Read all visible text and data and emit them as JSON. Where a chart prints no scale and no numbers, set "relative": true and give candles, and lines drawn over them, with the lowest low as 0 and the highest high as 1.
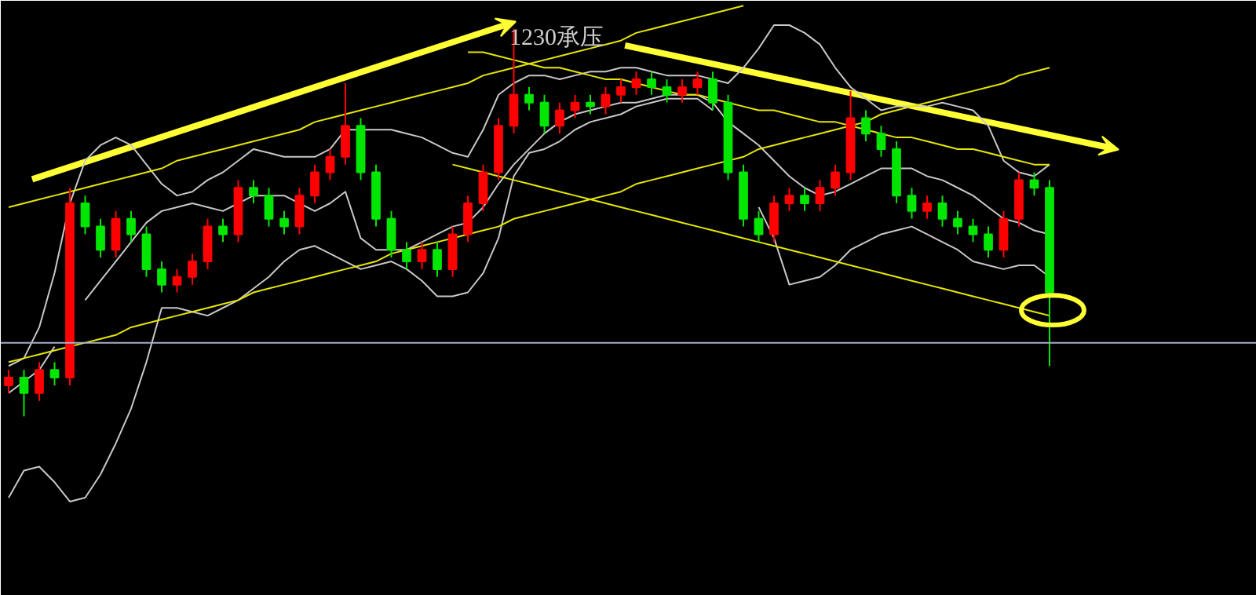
{
  "chart_data": {
    "type": "candlestick",
    "relative": true,
    "tick_labels": false,
    "grid": false,
    "categories": [
      null,
      null,
      null,
      null,
      null,
      null,
      null,
      null,
      null,
      null,
      null,
      null,
      null,
      null,
      null,
      null,
      null,
      null,
      null,
      null,
      null,
      null,
      null,
      null,
      null,
      null,
      null,
      null,
      null,
      null,
      null,
      null,
      null,
      null,
      null,
      null,
      null,
      null,
      null,
      null,
      null,
      null,
      null,
      null,
      null,
      null,
      null,
      null,
      null,
      null,
      null,
      null,
      null,
      null,
      null,
      null,
      null,
      null,
      null,
      null,
      null,
      null,
      null,
      null,
      null,
      null,
      null,
      null,
      null
    ],
    "ohlc": [
      [
        0.08,
        0.12,
        0.06,
        0.1
      ],
      [
        0.1,
        0.12,
        0.0,
        0.06
      ],
      [
        0.06,
        0.14,
        0.04,
        0.12
      ],
      [
        0.12,
        0.14,
        0.08,
        0.1
      ],
      [
        0.1,
        0.59,
        0.08,
        0.55
      ],
      [
        0.55,
        0.57,
        0.47,
        0.49
      ],
      [
        0.49,
        0.51,
        0.41,
        0.43
      ],
      [
        0.43,
        0.53,
        0.41,
        0.51
      ],
      [
        0.51,
        0.53,
        0.45,
        0.47
      ],
      [
        0.47,
        0.49,
        0.36,
        0.38
      ],
      [
        0.38,
        0.4,
        0.32,
        0.34
      ],
      [
        0.34,
        0.38,
        0.32,
        0.36
      ],
      [
        0.36,
        0.42,
        0.34,
        0.4
      ],
      [
        0.4,
        0.51,
        0.38,
        0.49
      ],
      [
        0.49,
        0.51,
        0.45,
        0.47
      ],
      [
        0.47,
        0.61,
        0.45,
        0.59
      ],
      [
        0.59,
        0.61,
        0.55,
        0.57
      ],
      [
        0.57,
        0.59,
        0.49,
        0.51
      ],
      [
        0.51,
        0.53,
        0.47,
        0.49
      ],
      [
        0.49,
        0.59,
        0.47,
        0.57
      ],
      [
        0.57,
        0.65,
        0.55,
        0.63
      ],
      [
        0.63,
        0.69,
        0.61,
        0.67
      ],
      [
        0.67,
        0.86,
        0.65,
        0.75
      ],
      [
        0.75,
        0.77,
        0.61,
        0.63
      ],
      [
        0.63,
        0.65,
        0.49,
        0.51
      ],
      [
        0.51,
        0.53,
        0.41,
        0.43
      ],
      [
        0.43,
        0.45,
        0.38,
        0.4
      ],
      [
        0.4,
        0.45,
        0.38,
        0.43
      ],
      [
        0.43,
        0.45,
        0.36,
        0.38
      ],
      [
        0.38,
        0.49,
        0.36,
        0.47
      ],
      [
        0.47,
        0.57,
        0.45,
        0.55
      ],
      [
        0.55,
        0.65,
        0.53,
        0.63
      ],
      [
        0.63,
        0.77,
        0.61,
        0.75
      ],
      [
        0.75,
        1.0,
        0.73,
        0.83
      ],
      [
        0.83,
        0.85,
        0.79,
        0.81
      ],
      [
        0.81,
        0.83,
        0.73,
        0.75
      ],
      [
        0.75,
        0.81,
        0.73,
        0.79
      ],
      [
        0.79,
        0.83,
        0.77,
        0.81
      ],
      [
        0.81,
        0.83,
        0.78,
        0.8
      ],
      [
        0.8,
        0.85,
        0.78,
        0.83
      ],
      [
        0.83,
        0.87,
        0.81,
        0.85
      ],
      [
        0.85,
        0.89,
        0.83,
        0.87
      ],
      [
        0.87,
        0.89,
        0.83,
        0.85
      ],
      [
        0.85,
        0.87,
        0.81,
        0.83
      ],
      [
        0.83,
        0.87,
        0.81,
        0.85
      ],
      [
        0.85,
        0.89,
        0.83,
        0.87
      ],
      [
        0.87,
        0.89,
        0.79,
        0.81
      ],
      [
        0.81,
        0.83,
        0.61,
        0.63
      ],
      [
        0.63,
        0.65,
        0.49,
        0.51
      ],
      [
        0.51,
        0.53,
        0.45,
        0.47
      ],
      [
        0.47,
        0.57,
        0.45,
        0.55
      ],
      [
        0.55,
        0.59,
        0.53,
        0.57
      ],
      [
        0.57,
        0.59,
        0.53,
        0.55
      ],
      [
        0.55,
        0.61,
        0.53,
        0.59
      ],
      [
        0.59,
        0.65,
        0.57,
        0.63
      ],
      [
        0.63,
        0.84,
        0.61,
        0.77
      ],
      [
        0.77,
        0.79,
        0.71,
        0.73
      ],
      [
        0.73,
        0.75,
        0.67,
        0.69
      ],
      [
        0.69,
        0.71,
        0.55,
        0.57
      ],
      [
        0.57,
        0.59,
        0.51,
        0.53
      ],
      [
        0.53,
        0.57,
        0.51,
        0.55
      ],
      [
        0.55,
        0.57,
        0.49,
        0.51
      ],
      [
        0.51,
        0.53,
        0.47,
        0.49
      ],
      [
        0.49,
        0.51,
        0.45,
        0.47
      ],
      [
        0.47,
        0.49,
        0.41,
        0.43
      ],
      [
        0.43,
        0.53,
        0.41,
        0.51
      ],
      [
        0.51,
        0.63,
        0.49,
        0.61
      ],
      [
        0.61,
        0.63,
        0.57,
        0.59
      ],
      [
        0.59,
        0.61,
        0.13,
        0.32
      ]
    ],
    "colors": [
      "#ff0000",
      "#00e600",
      "#ff0000",
      "#00e600",
      "#ff0000",
      "#00e600",
      "#00e600",
      "#ff0000",
      "#00e600",
      "#00e600",
      "#00e600",
      "#ff0000",
      "#ff0000",
      "#ff0000",
      "#00e600",
      "#ff0000",
      "#00e600",
      "#00e600",
      "#00e600",
      "#ff0000",
      "#ff0000",
      "#ff0000",
      "#ff0000",
      "#00e600",
      "#00e600",
      "#00e600",
      "#00e600",
      "#ff0000",
      "#00e600",
      "#ff0000",
      "#ff0000",
      "#ff0000",
      "#ff0000",
      "#ff0000",
      "#00e600",
      "#00e600",
      "#ff0000",
      "#ff0000",
      "#00e600",
      "#ff0000",
      "#ff0000",
      "#ff0000",
      "#00e600",
      "#00e600",
      "#ff0000",
      "#ff0000",
      "#00e600",
      "#00e600",
      "#00e600",
      "#00e600",
      "#ff0000",
      "#ff0000",
      "#00e600",
      "#ff0000",
      "#ff0000",
      "#ff0000",
      "#00e600",
      "#00e600",
      "#00e600",
      "#00e600",
      "#ff0000",
      "#00e600",
      "#00e600",
      "#00e600",
      "#00e600",
      "#ff0000",
      "#ff0000",
      "#00e600",
      "#00e600"
    ],
    "series": [
      {
        "type": "line",
        "color": "#c8c8c8",
        "values": [
          0.13,
          0.15,
          0.23,
          0.37,
          0.55,
          0.66,
          0.7,
          0.72,
          0.7,
          0.65,
          0.6,
          0.57,
          0.58,
          0.61,
          0.63,
          0.66,
          0.69,
          0.68,
          0.67,
          0.67,
          0.67,
          0.69,
          0.74,
          0.74,
          0.74,
          0.74,
          0.73,
          0.72,
          0.7,
          0.68,
          0.67,
          0.74,
          0.83,
          0.86,
          0.88,
          0.88,
          0.87,
          0.88,
          0.89,
          0.89,
          0.9,
          0.9,
          0.89,
          0.88,
          0.88,
          0.88,
          0.87,
          0.86,
          0.9,
          0.95,
          1.01,
          1.01,
          0.99,
          0.96,
          0.9,
          0.85,
          0.82,
          0.79,
          0.8,
          0.8,
          0.8,
          0.81,
          0.8,
          0.79,
          0.75,
          0.66,
          0.63,
          0.62,
          0.65
        ]
      },
      {
        "type": "line",
        "color": "#c8c8c8",
        "values": [
          0.06,
          0.09,
          0.12,
          0.18,
          null,
          0.3,
          0.35,
          0.4,
          0.45,
          0.5,
          0.53,
          0.54,
          0.55,
          0.54,
          0.53,
          0.55,
          0.57,
          0.57,
          0.57,
          0.55,
          0.53,
          0.55,
          0.58,
          0.46,
          0.43,
          0.43,
          0.43,
          0.45,
          0.47,
          0.49,
          0.5,
          0.54,
          0.6,
          0.65,
          0.69,
          0.73,
          0.76,
          0.78,
          0.79,
          0.8,
          0.81,
          0.81,
          0.82,
          0.83,
          0.83,
          0.83,
          0.81,
          0.76,
          0.73,
          0.7,
          0.66,
          0.62,
          0.59,
          0.57,
          0.58,
          0.6,
          0.62,
          0.64,
          0.64,
          0.64,
          0.62,
          0.61,
          0.59,
          0.57,
          0.54,
          0.51,
          0.5,
          0.48,
          0.47
        ]
      },
      {
        "type": "line",
        "color": "#c8c8c8",
        "values": [
          -0.21,
          -0.14,
          -0.13,
          -0.17,
          -0.22,
          -0.21,
          -0.15,
          -0.07,
          0.02,
          0.14,
          0.28,
          0.28,
          0.27,
          0.26,
          0.28,
          0.3,
          0.33,
          0.36,
          0.4,
          0.43,
          0.44,
          0.42,
          0.4,
          0.38,
          0.39,
          0.4,
          0.38,
          0.35,
          0.31,
          0.31,
          0.32,
          0.37,
          0.46,
          0.62,
          0.68,
          0.69,
          0.71,
          0.74,
          0.76,
          0.77,
          0.78,
          0.8,
          0.81,
          0.82,
          0.82,
          0.82,
          0.79,
          null,
          null,
          0.54,
          0.46,
          0.34,
          0.35,
          0.36,
          0.39,
          0.43,
          0.45,
          0.47,
          0.48,
          0.49,
          0.47,
          0.45,
          0.43,
          0.4,
          0.39,
          0.38,
          0.39,
          0.39,
          0.36
        ]
      },
      {
        "type": "line",
        "color": "#e6e600",
        "values": [
          0.54,
          0.55,
          0.56,
          0.57,
          0.58,
          0.59,
          0.6,
          0.61,
          0.62,
          0.63,
          0.64,
          0.66,
          0.67,
          0.68,
          0.69,
          0.7,
          0.71,
          0.72,
          0.73,
          0.74,
          0.76,
          0.77,
          0.78,
          0.79,
          0.8,
          0.81,
          0.82,
          0.83,
          0.84,
          0.85,
          0.86,
          0.88,
          0.89,
          0.9,
          0.91,
          0.92,
          0.93,
          0.94,
          0.95,
          0.96,
          0.97,
          0.99,
          1.0,
          1.01,
          1.02,
          1.03,
          1.04,
          1.05,
          1.06,
          null,
          null,
          null,
          null,
          null,
          null,
          null,
          null,
          null,
          null,
          null,
          null,
          null,
          null,
          null,
          null,
          null,
          null,
          null,
          null
        ]
      },
      {
        "type": "line",
        "color": "#e6e600",
        "values": [
          0.14,
          0.15,
          0.16,
          0.17,
          0.18,
          0.19,
          0.2,
          0.21,
          0.23,
          0.24,
          0.25,
          0.26,
          0.27,
          0.28,
          0.29,
          0.3,
          0.32,
          0.33,
          0.34,
          0.35,
          0.36,
          0.37,
          0.38,
          0.39,
          0.4,
          0.42,
          0.43,
          0.44,
          0.45,
          0.46,
          0.47,
          0.48,
          0.49,
          0.51,
          0.52,
          0.53,
          0.54,
          0.55,
          0.56,
          0.57,
          0.58,
          0.6,
          0.61,
          0.62,
          0.63,
          0.64,
          0.65,
          0.66,
          0.67,
          0.69,
          0.7,
          0.71,
          0.72,
          0.73,
          0.74,
          0.75,
          0.76,
          0.78,
          0.79,
          0.8,
          0.81,
          0.82,
          0.83,
          0.84,
          0.85,
          0.86,
          0.88,
          0.89,
          0.9
        ]
      },
      {
        "type": "line",
        "color": "#e6e600",
        "values": [
          null,
          null,
          null,
          null,
          null,
          null,
          null,
          null,
          null,
          null,
          null,
          null,
          null,
          null,
          null,
          null,
          null,
          null,
          null,
          null,
          null,
          null,
          null,
          null,
          null,
          null,
          null,
          null,
          null,
          null,
          0.94,
          0.94,
          0.93,
          0.92,
          0.91,
          0.9,
          0.9,
          0.89,
          0.88,
          0.87,
          0.87,
          0.86,
          0.85,
          0.84,
          0.83,
          0.83,
          0.82,
          0.81,
          0.8,
          0.79,
          0.79,
          0.78,
          0.77,
          0.76,
          0.76,
          0.75,
          0.74,
          0.73,
          0.72,
          0.72,
          0.71,
          0.7,
          0.69,
          0.69,
          0.68,
          0.67,
          0.66,
          0.65,
          0.65
        ]
      },
      {
        "type": "line",
        "color": "#e6e600",
        "values": [
          null,
          null,
          null,
          null,
          null,
          null,
          null,
          null,
          null,
          null,
          null,
          null,
          null,
          null,
          null,
          null,
          null,
          null,
          null,
          null,
          null,
          null,
          null,
          null,
          null,
          null,
          null,
          null,
          null,
          0.65,
          0.64,
          0.63,
          0.62,
          0.61,
          0.6,
          0.59,
          0.58,
          0.57,
          0.56,
          0.55,
          0.54,
          0.53,
          0.52,
          0.51,
          0.5,
          0.49,
          0.48,
          0.47,
          0.46,
          0.45,
          0.44,
          0.43,
          0.42,
          0.41,
          0.4,
          0.39,
          0.38,
          0.37,
          0.36,
          0.35,
          0.34,
          0.33,
          0.32,
          0.31,
          0.3,
          0.29,
          0.28,
          0.27,
          0.26
        ]
      }
    ],
    "ref_lines": [
      {
        "axis": "y",
        "value": 0.19,
        "color": "#a8aec8"
      }
    ],
    "annotations": [
      "1230承压"
    ]
  }
}
